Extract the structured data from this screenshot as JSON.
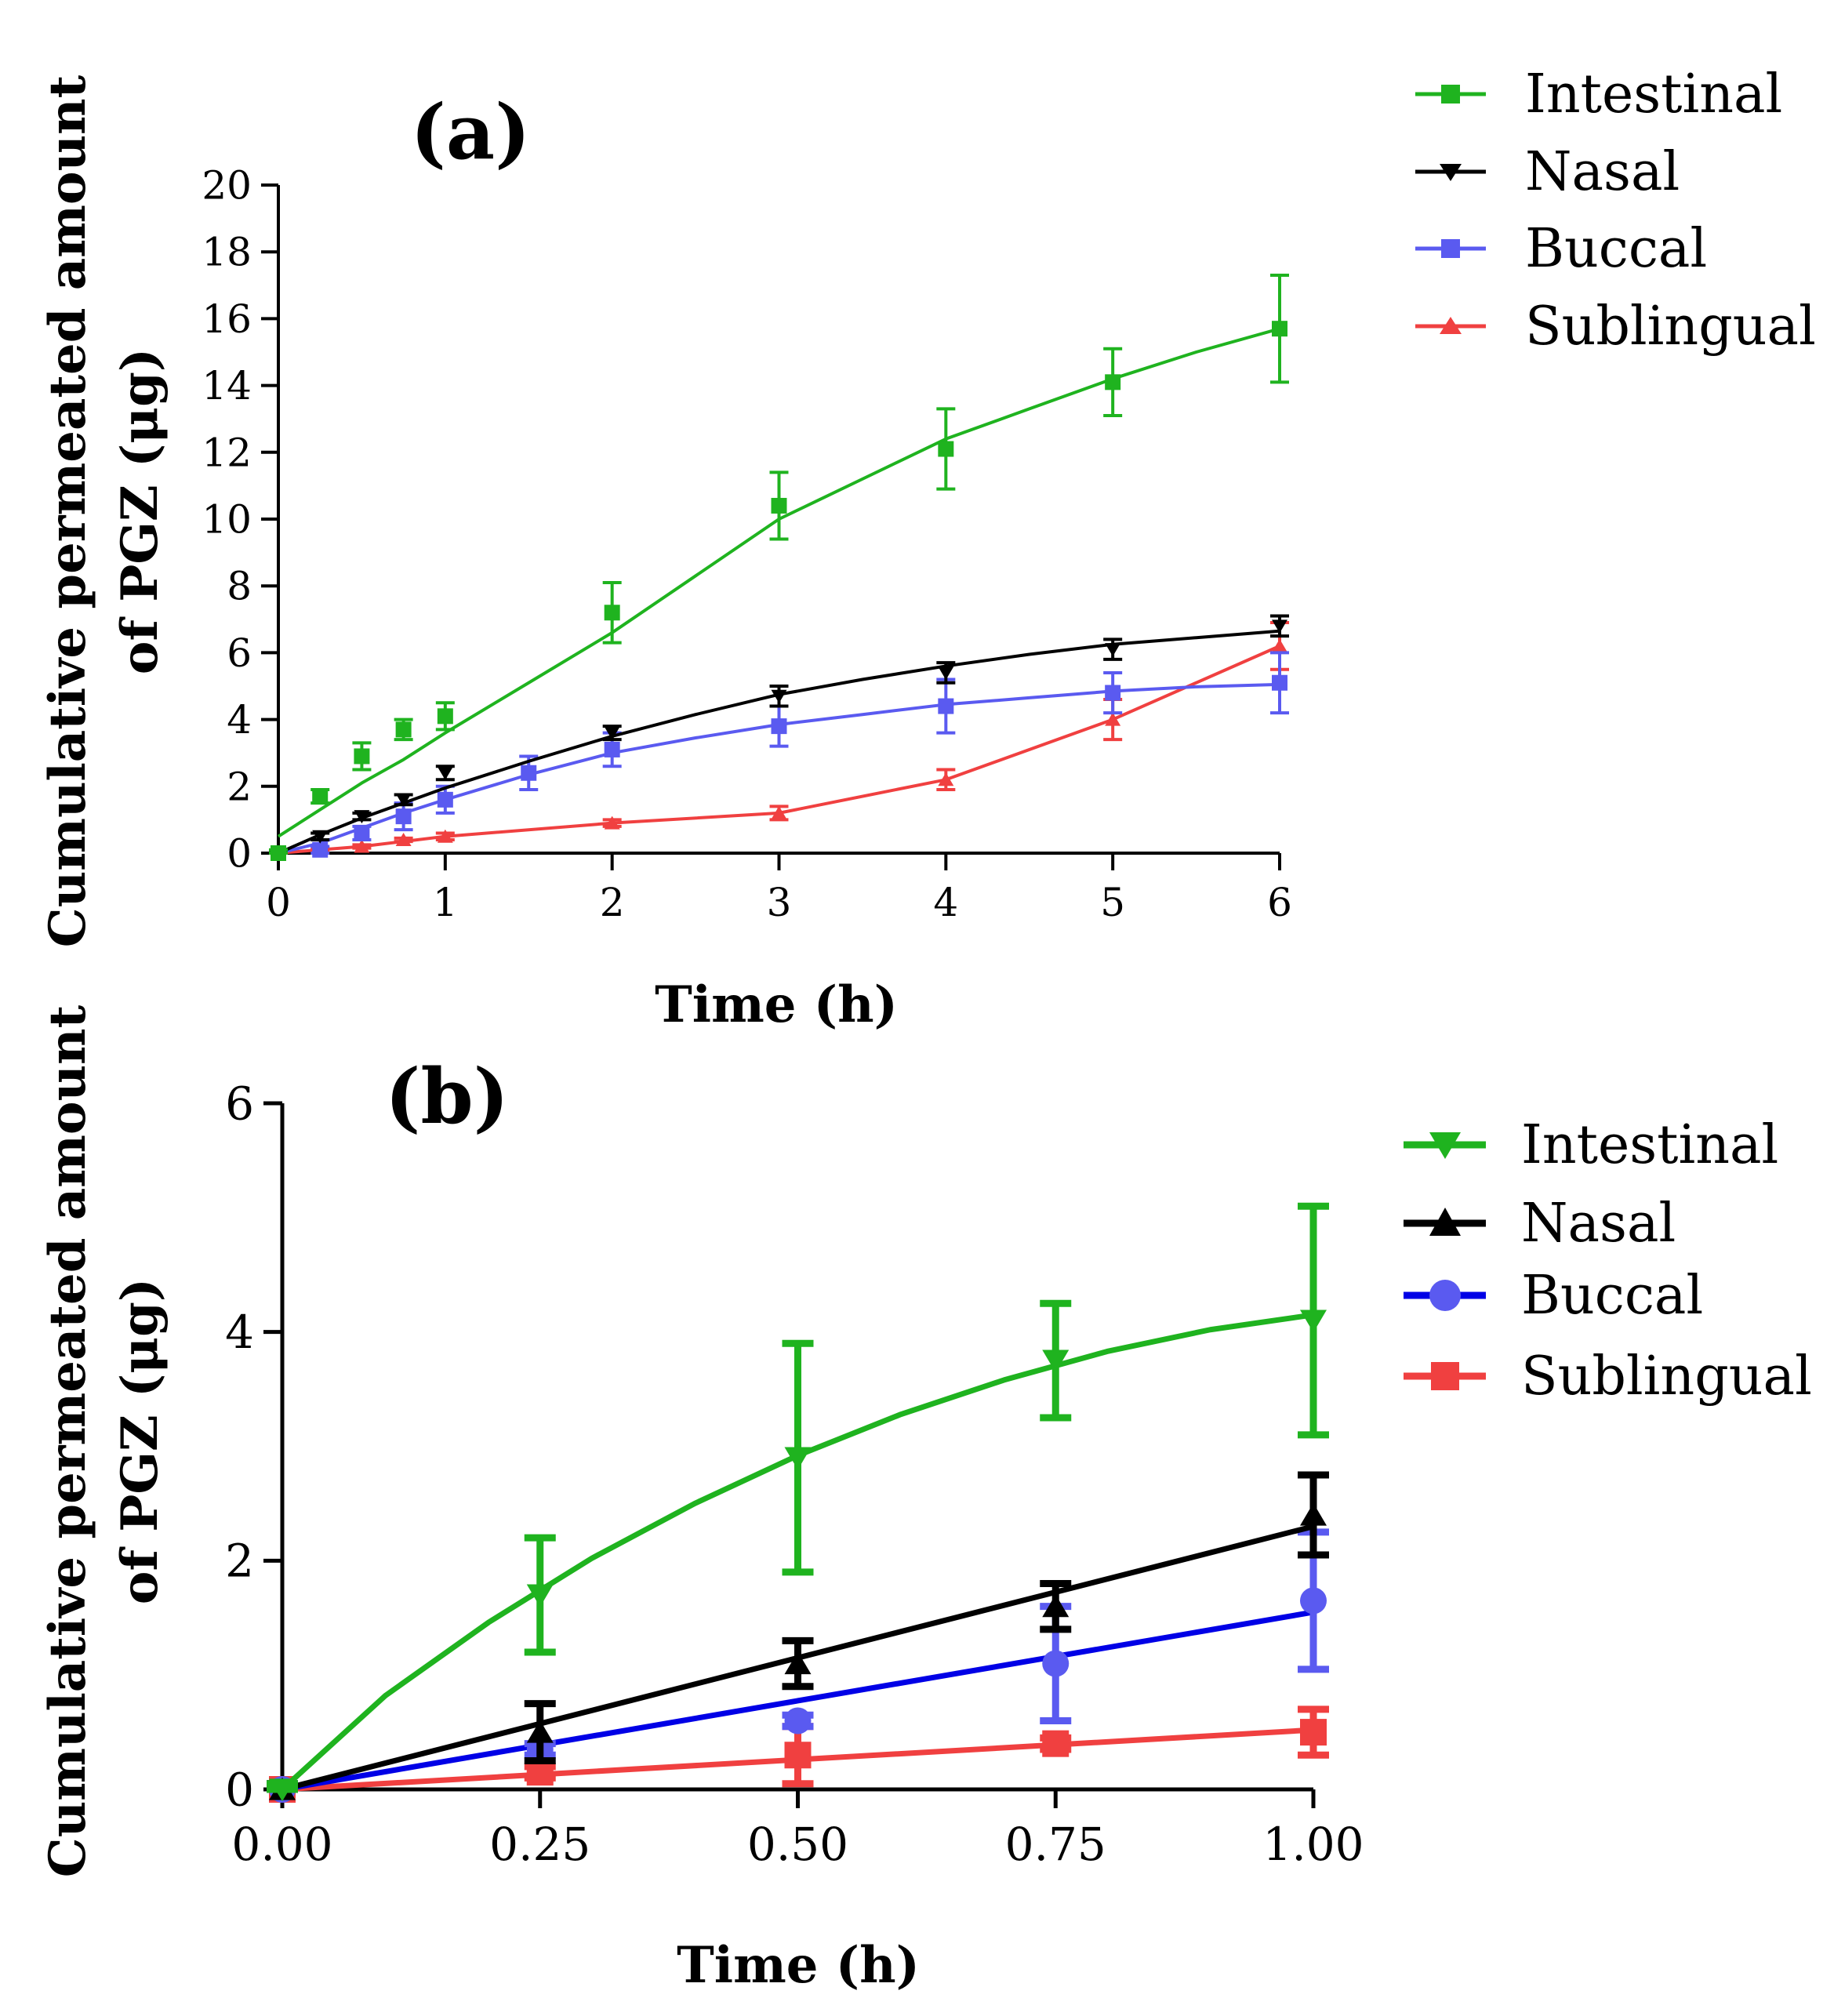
{
  "colors": {
    "intestinal": "#1fb31f",
    "nasal": "#000000",
    "buccal_a": "#5a5af0",
    "buccal_b_line": "#0000e6",
    "buccal_b_marker": "#5a5af0",
    "sublingual": "#f04040"
  },
  "chart_data": [
    {
      "type": "line",
      "panel_label": "(a)",
      "xlabel": "Time (h)",
      "ylabel_lines": [
        "Cumulative permeated amount",
        "of PGZ (μg)"
      ],
      "xlim": [
        0,
        6
      ],
      "ylim": [
        0,
        20
      ],
      "x_ticks": [
        0,
        1,
        2,
        3,
        4,
        5,
        6
      ],
      "x_tick_labels": [
        "0",
        "1",
        "2",
        "3",
        "4",
        "5",
        "6"
      ],
      "y_ticks": [
        0,
        2,
        4,
        6,
        8,
        10,
        12,
        14,
        16,
        18,
        20
      ],
      "y_tick_labels": [
        "0",
        "2",
        "4",
        "6",
        "8",
        "10",
        "12",
        "14",
        "16",
        "18",
        "20"
      ],
      "legend_position": "top-right",
      "series": [
        {
          "name": "Intestinal",
          "key": "intestinal",
          "marker": "square",
          "x": [
            0,
            0.25,
            0.5,
            0.75,
            1,
            2,
            3,
            4,
            5,
            6
          ],
          "y": [
            0,
            1.7,
            2.9,
            3.7,
            4.1,
            7.2,
            10.4,
            12.1,
            14.1,
            15.7
          ],
          "err": [
            0.1,
            0.2,
            0.4,
            0.3,
            0.4,
            0.9,
            1.0,
            1.2,
            1.0,
            1.6
          ],
          "fit_x": [
            0,
            0.25,
            0.5,
            0.75,
            1,
            1.5,
            2,
            2.5,
            3,
            3.5,
            4,
            4.5,
            5,
            5.5,
            6
          ],
          "fit_y": [
            0.5,
            1.3,
            2.1,
            2.8,
            3.6,
            5.1,
            6.6,
            8.3,
            10.0,
            11.2,
            12.4,
            13.3,
            14.2,
            15.0,
            15.7
          ]
        },
        {
          "name": "Nasal",
          "key": "nasal",
          "marker": "triangle-down",
          "x": [
            0,
            0.25,
            0.5,
            0.75,
            1,
            2,
            3,
            4,
            5,
            6
          ],
          "y": [
            0,
            0.5,
            1.1,
            1.6,
            2.4,
            3.6,
            4.7,
            5.4,
            6.1,
            6.8
          ],
          "err": [
            0.05,
            0.1,
            0.1,
            0.15,
            0.2,
            0.2,
            0.3,
            0.3,
            0.3,
            0.3
          ],
          "fit_x": [
            0,
            0.25,
            0.5,
            0.75,
            1,
            1.5,
            2,
            2.5,
            3,
            3.5,
            4,
            4.5,
            5,
            5.5,
            6
          ],
          "fit_y": [
            0,
            0.55,
            1.05,
            1.5,
            1.95,
            2.75,
            3.5,
            4.15,
            4.75,
            5.2,
            5.6,
            5.95,
            6.25,
            6.45,
            6.65
          ]
        },
        {
          "name": "Buccal",
          "key": "buccal_a",
          "marker": "square",
          "x": [
            0,
            0.25,
            0.5,
            0.75,
            1,
            1.5,
            2,
            3,
            4,
            5,
            6
          ],
          "y": [
            0,
            0.1,
            0.6,
            1.1,
            1.6,
            2.4,
            3.1,
            3.8,
            4.4,
            4.8,
            5.1
          ],
          "err": [
            0.05,
            0.1,
            0.2,
            0.4,
            0.4,
            0.5,
            0.5,
            0.6,
            0.8,
            0.6,
            0.9
          ],
          "fit_x": [
            0,
            0.25,
            0.5,
            0.75,
            1,
            1.5,
            2,
            2.5,
            3,
            3.5,
            4,
            4.5,
            5,
            5.5,
            6
          ],
          "fit_y": [
            0,
            0.3,
            0.75,
            1.2,
            1.6,
            2.35,
            3.0,
            3.45,
            3.85,
            4.15,
            4.45,
            4.65,
            4.85,
            4.98,
            5.05
          ]
        },
        {
          "name": "Sublingual",
          "key": "sublingual",
          "marker": "triangle-up",
          "x": [
            0,
            0.25,
            0.5,
            0.75,
            1,
            2,
            3,
            4,
            5,
            6
          ],
          "y": [
            0,
            0.1,
            0.2,
            0.4,
            0.5,
            0.9,
            1.2,
            2.2,
            4.0,
            6.2
          ],
          "err": [
            0.05,
            0.05,
            0.05,
            0.05,
            0.1,
            0.1,
            0.2,
            0.3,
            0.6,
            0.7
          ],
          "fit_x": [
            0,
            0.25,
            0.5,
            0.75,
            1,
            2,
            3,
            4,
            5,
            6
          ],
          "fit_y": [
            0,
            0.1,
            0.2,
            0.35,
            0.5,
            0.9,
            1.2,
            2.2,
            4.0,
            6.2
          ]
        }
      ]
    },
    {
      "type": "line",
      "panel_label": "(b)",
      "xlabel": "Time (h)",
      "ylabel_lines": [
        "Cumulative permeated amount",
        "of PGZ (μg)"
      ],
      "xlim": [
        0,
        1
      ],
      "ylim": [
        0,
        6
      ],
      "x_ticks": [
        0,
        0.25,
        0.5,
        0.75,
        1
      ],
      "x_tick_labels": [
        "0.00",
        "0.25",
        "0.50",
        "0.75",
        "1.00"
      ],
      "y_ticks": [
        0,
        2,
        4,
        6
      ],
      "y_tick_labels": [
        "0",
        "2",
        "4",
        "6"
      ],
      "legend_position": "top-right",
      "series": [
        {
          "name": "Intestinal",
          "key": "intestinal",
          "marker": "triangle-down",
          "x": [
            0,
            0.25,
            0.5,
            0.75,
            1
          ],
          "y": [
            0,
            1.7,
            2.9,
            3.75,
            4.1
          ],
          "err": [
            0.05,
            0.5,
            1.0,
            0.5,
            1.0
          ],
          "fit_x": [
            0,
            0.1,
            0.2,
            0.3,
            0.4,
            0.5,
            0.6,
            0.7,
            0.8,
            0.9,
            1.0
          ],
          "fit_y": [
            0,
            0.82,
            1.46,
            2.02,
            2.5,
            2.92,
            3.28,
            3.58,
            3.83,
            4.02,
            4.15
          ]
        },
        {
          "name": "Nasal",
          "key": "nasal",
          "marker": "triangle-up",
          "x": [
            0,
            0.25,
            0.5,
            0.75,
            1
          ],
          "y": [
            0,
            0.5,
            1.1,
            1.6,
            2.4
          ],
          "err": [
            0.05,
            0.25,
            0.2,
            0.2,
            0.35
          ],
          "fit_x": [
            0,
            1
          ],
          "fit_y": [
            0,
            2.3
          ]
        },
        {
          "name": "Buccal",
          "key": "buccal_b",
          "marker": "circle",
          "x": [
            0,
            0.25,
            0.5,
            0.75,
            1
          ],
          "y": [
            0,
            0.35,
            0.6,
            1.1,
            1.65
          ],
          "err": [
            0.05,
            0.05,
            0.05,
            0.5,
            0.6
          ],
          "fit_x": [
            0,
            1
          ],
          "fit_y": [
            0,
            1.55
          ]
        },
        {
          "name": "Sublingual",
          "key": "sublingual",
          "marker": "square",
          "x": [
            0,
            0.25,
            0.5,
            0.75,
            1
          ],
          "y": [
            0,
            0.15,
            0.3,
            0.4,
            0.5
          ],
          "err": [
            0.05,
            0.05,
            0.25,
            0.05,
            0.2
          ],
          "fit_x": [
            0,
            1
          ],
          "fit_y": [
            0,
            0.52
          ]
        }
      ]
    }
  ]
}
